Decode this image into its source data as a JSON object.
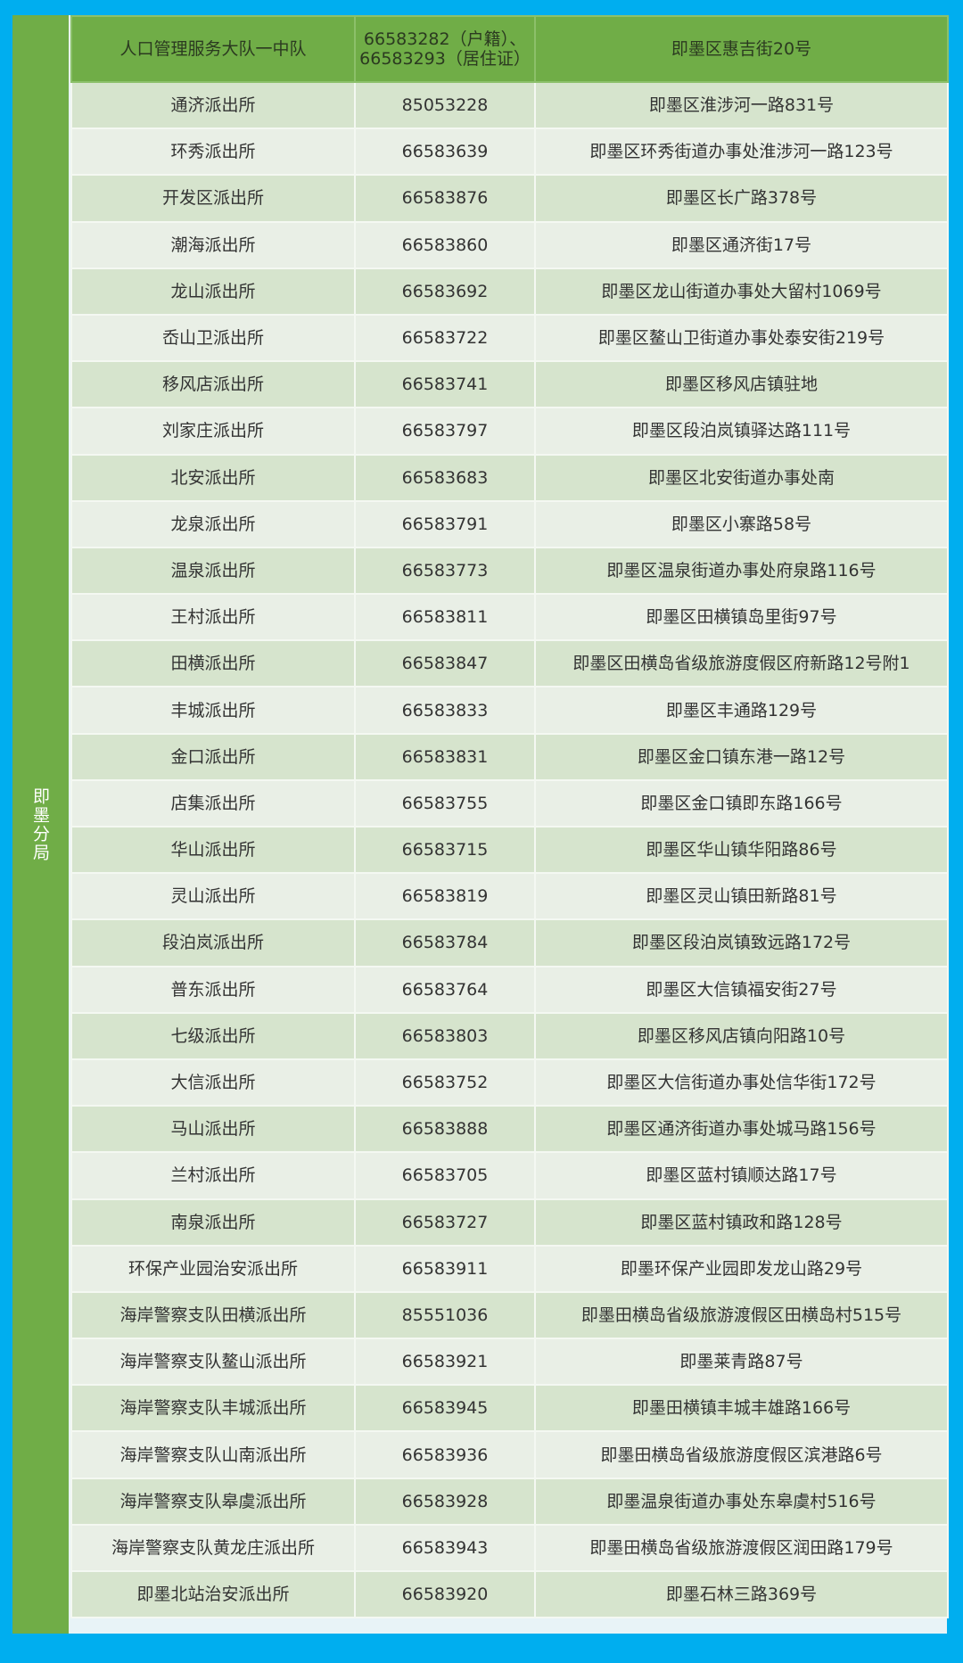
{
  "colors": {
    "background": "#00aeef",
    "header": "#70ad47",
    "row_dark": "#d6e4cd",
    "row_light": "#e9efe6"
  },
  "bureau": "即墨分局",
  "header": {
    "name": "人口管理服务大队一中队",
    "phone": "66583282（户籍）、66583293（居住证）",
    "address": "即墨区惠吉街20号"
  },
  "rows": [
    [
      "通济派出所",
      "85053228",
      "即墨区淮涉河一路831号"
    ],
    [
      "环秀派出所",
      "66583639",
      "即墨区环秀街道办事处淮涉河一路123号"
    ],
    [
      "开发区派出所",
      "66583876",
      "即墨区长广路378号"
    ],
    [
      "潮海派出所",
      "66583860",
      "即墨区通济街17号"
    ],
    [
      "龙山派出所",
      "66583692",
      "即墨区龙山街道办事处大留村1069号"
    ],
    [
      "岙山卫派出所",
      "66583722",
      "即墨区鳌山卫街道办事处泰安街219号"
    ],
    [
      "移风店派出所",
      "66583741",
      "即墨区移风店镇驻地"
    ],
    [
      "刘家庄派出所",
      "66583797",
      "即墨区段泊岚镇驿达路111号"
    ],
    [
      "北安派出所",
      "66583683",
      "即墨区北安街道办事处南"
    ],
    [
      "龙泉派出所",
      "66583791",
      "即墨区小寨路58号"
    ],
    [
      "温泉派出所",
      "66583773",
      "即墨区温泉街道办事处府泉路116号"
    ],
    [
      "王村派出所",
      "66583811",
      "即墨区田横镇岛里街97号"
    ],
    [
      "田横派出所",
      "66583847",
      "即墨区田横岛省级旅游度假区府新路12号附1"
    ],
    [
      "丰城派出所",
      "66583833",
      "即墨区丰通路129号"
    ],
    [
      "金口派出所",
      "66583831",
      "即墨区金口镇东港一路12号"
    ],
    [
      "店集派出所",
      "66583755",
      "即墨区金口镇即东路166号"
    ],
    [
      "华山派出所",
      "66583715",
      "即墨区华山镇华阳路86号"
    ],
    [
      "灵山派出所",
      "66583819",
      "即墨区灵山镇田新路81号"
    ],
    [
      "段泊岚派出所",
      "66583784",
      "即墨区段泊岚镇致远路172号"
    ],
    [
      "普东派出所",
      "66583764",
      "即墨区大信镇福安街27号"
    ],
    [
      "七级派出所",
      "66583803",
      "即墨区移风店镇向阳路10号"
    ],
    [
      "大信派出所",
      "66583752",
      "即墨区大信街道办事处信华街172号"
    ],
    [
      "马山派出所",
      "66583888",
      "即墨区通济街道办事处城马路156号"
    ],
    [
      "兰村派出所",
      "66583705",
      "即墨区蓝村镇顺达路17号"
    ],
    [
      "南泉派出所",
      "66583727",
      "即墨区蓝村镇政和路128号"
    ],
    [
      "环保产业园治安派出所",
      "66583911",
      "即墨环保产业园即发龙山路29号"
    ],
    [
      "海岸警察支队田横派出所",
      "85551036",
      "即墨田横岛省级旅游渡假区田横岛村515号"
    ],
    [
      "海岸警察支队鳌山派出所",
      "66583921",
      "即墨莱青路87号"
    ],
    [
      "海岸警察支队丰城派出所",
      "66583945",
      "即墨田横镇丰城丰雄路166号"
    ],
    [
      "海岸警察支队山南派出所",
      "66583936",
      "即墨田横岛省级旅游度假区滨港路6号"
    ],
    [
      "海岸警察支队皋虞派出所",
      "66583928",
      "即墨温泉街道办事处东皋虞村516号"
    ],
    [
      "海岸警察支队黄龙庄派出所",
      "66583943",
      "即墨田横岛省级旅游渡假区润田路179号"
    ],
    [
      "即墨北站治安派出所",
      "66583920",
      "即墨石林三路369号"
    ]
  ]
}
